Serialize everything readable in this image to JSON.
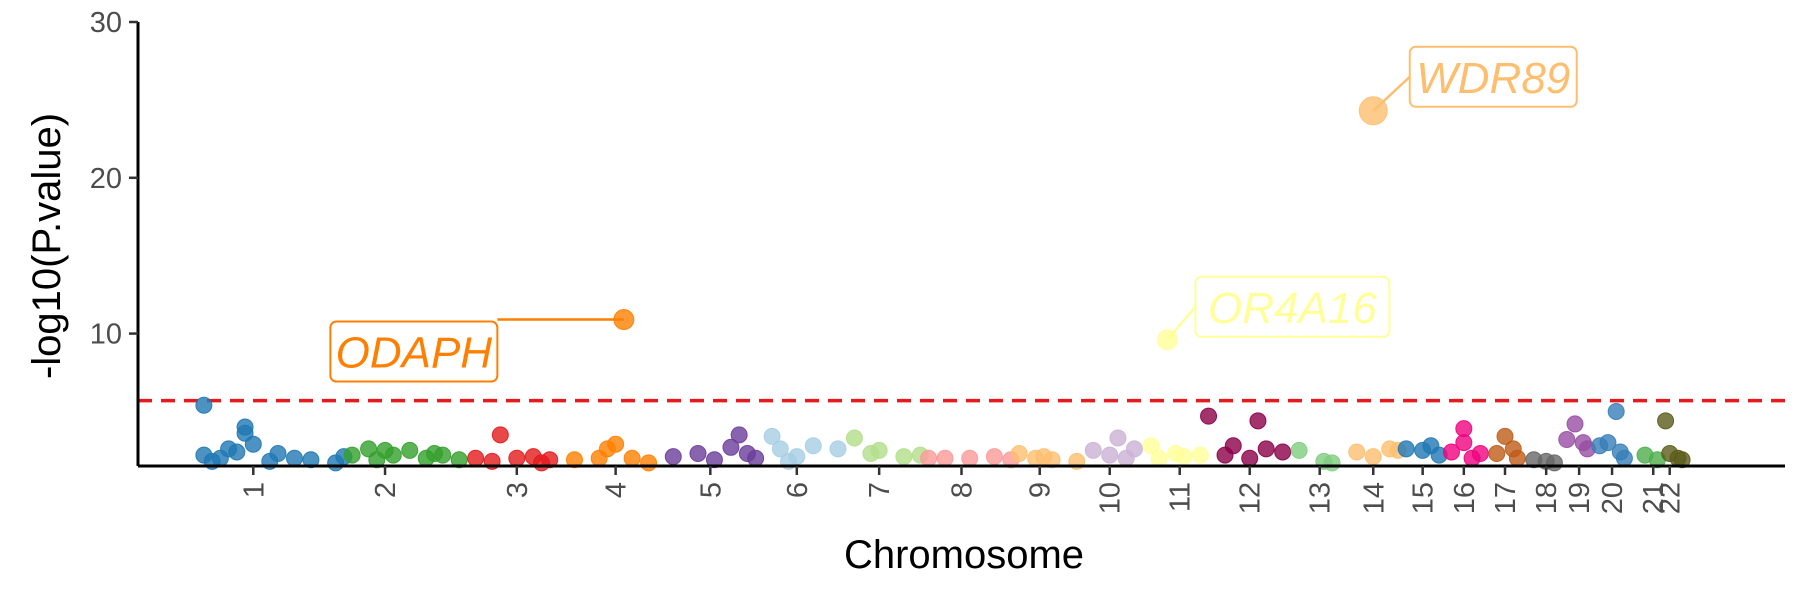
{
  "chart_data": {
    "type": "scatter",
    "subtype": "manhattan",
    "title": "",
    "xlabel": "Chromosome",
    "ylabel": "-log10(P.value)",
    "ylim": [
      1.5,
      30
    ],
    "yticks": [
      10,
      20,
      30
    ],
    "threshold": {
      "value": 5.7,
      "color": "#e41a1c",
      "style": "dashed"
    },
    "grid": false,
    "legend": "none",
    "chromosomes": [
      {
        "name": "1",
        "color": "#1f78b4",
        "pos": 1.4,
        "points": [
          [
            0.8,
            5.4
          ],
          [
            0.8,
            2.2
          ],
          [
            1.0,
            2.0
          ],
          [
            1.3,
            4.0
          ],
          [
            1.3,
            3.6
          ],
          [
            1.4,
            2.9
          ],
          [
            1.6,
            1.8
          ],
          [
            1.9,
            2.0
          ],
          [
            2.1,
            1.9
          ],
          [
            2.4,
            1.7
          ],
          [
            1.1,
            2.6
          ],
          [
            1.7,
            2.3
          ],
          [
            2.5,
            2.1
          ],
          [
            0.9,
            1.8
          ],
          [
            1.2,
            2.4
          ]
        ]
      },
      {
        "name": "2",
        "color": "#33a02c",
        "pos": 3.0,
        "points": [
          [
            2.6,
            2.2
          ],
          [
            2.8,
            2.6
          ],
          [
            3.0,
            2.5
          ],
          [
            3.1,
            2.2
          ],
          [
            3.3,
            2.5
          ],
          [
            3.6,
            2.3
          ],
          [
            3.9,
            1.9
          ],
          [
            2.9,
            1.9
          ],
          [
            3.5,
            2.0
          ],
          [
            3.7,
            2.2
          ]
        ]
      },
      {
        "name": "3",
        "color": "#e31a1c",
        "pos": 4.6,
        "points": [
          [
            4.1,
            2.0
          ],
          [
            4.4,
            3.5
          ],
          [
            4.6,
            2.0
          ],
          [
            4.8,
            2.1
          ],
          [
            5.0,
            1.9
          ],
          [
            4.3,
            1.8
          ],
          [
            4.9,
            1.7
          ]
        ]
      },
      {
        "name": "4",
        "color": "#ff7f00",
        "pos": 5.8,
        "points": [
          [
            5.3,
            1.9
          ],
          [
            5.6,
            2.0
          ],
          [
            5.8,
            2.9
          ],
          [
            5.9,
            10.9
          ],
          [
            6.0,
            2.0
          ],
          [
            6.2,
            1.7
          ],
          [
            5.7,
            2.6
          ]
        ]
      },
      {
        "name": "5",
        "color": "#6a3d9a",
        "pos": 6.95,
        "points": [
          [
            6.5,
            2.1
          ],
          [
            6.8,
            2.3
          ],
          [
            7.0,
            1.9
          ],
          [
            7.3,
            3.5
          ],
          [
            7.4,
            2.3
          ],
          [
            7.5,
            2.0
          ],
          [
            7.2,
            2.7
          ]
        ]
      },
      {
        "name": "6",
        "color": "#a6cee3",
        "pos": 8.0,
        "points": [
          [
            7.7,
            3.4
          ],
          [
            7.8,
            2.6
          ],
          [
            8.2,
            2.8
          ],
          [
            8.5,
            2.6
          ],
          [
            8.0,
            2.1
          ],
          [
            7.9,
            1.8
          ]
        ]
      },
      {
        "name": "7",
        "color": "#b2df8a",
        "pos": 9.0,
        "points": [
          [
            8.7,
            3.3
          ],
          [
            9.0,
            2.5
          ],
          [
            9.3,
            2.1
          ],
          [
            8.9,
            2.3
          ],
          [
            9.5,
            2.2
          ]
        ]
      },
      {
        "name": "8",
        "color": "#fb9a99",
        "pos": 10.0,
        "points": [
          [
            9.6,
            2.0
          ],
          [
            9.8,
            2.0
          ],
          [
            10.1,
            2.0
          ],
          [
            10.4,
            2.1
          ],
          [
            10.6,
            1.9
          ]
        ]
      },
      {
        "name": "9",
        "color": "#fdbf6f",
        "pos": 10.95,
        "points": [
          [
            10.7,
            2.3
          ],
          [
            10.9,
            2.0
          ],
          [
            11.1,
            1.9
          ],
          [
            11.4,
            1.8
          ],
          [
            11.0,
            2.1
          ]
        ]
      },
      {
        "name": "10",
        "color": "#cab2d6",
        "pos": 11.8,
        "points": [
          [
            11.6,
            2.5
          ],
          [
            11.9,
            3.3
          ],
          [
            12.1,
            2.6
          ],
          [
            11.8,
            2.2
          ],
          [
            12.0,
            2.0
          ]
        ]
      },
      {
        "name": "11",
        "color": "#ffff99",
        "pos": 12.65,
        "points": [
          [
            12.3,
            2.8
          ],
          [
            12.5,
            9.6
          ],
          [
            12.6,
            2.3
          ],
          [
            12.9,
            2.2
          ],
          [
            12.7,
            2.1
          ],
          [
            12.4,
            2.0
          ]
        ]
      },
      {
        "name": "12",
        "color": "#8b0048",
        "pos": 13.5,
        "points": [
          [
            13.0,
            4.7
          ],
          [
            13.3,
            2.8
          ],
          [
            13.6,
            4.4
          ],
          [
            13.7,
            2.6
          ],
          [
            13.9,
            2.4
          ],
          [
            13.2,
            2.2
          ],
          [
            13.5,
            2.0
          ]
        ]
      },
      {
        "name": "13",
        "color": "#7fcd7f",
        "pos": 14.35,
        "points": [
          [
            14.1,
            2.5
          ],
          [
            14.4,
            1.8
          ],
          [
            14.5,
            1.7
          ]
        ]
      },
      {
        "name": "14",
        "color": "#fdbf6f",
        "pos": 15.0,
        "points": [
          [
            14.8,
            2.4
          ],
          [
            15.0,
            24.3
          ],
          [
            15.2,
            2.6
          ],
          [
            15.0,
            2.1
          ],
          [
            15.3,
            2.5
          ]
        ]
      },
      {
        "name": "15",
        "color": "#1f78b4",
        "pos": 15.6,
        "points": [
          [
            15.4,
            2.6
          ],
          [
            15.6,
            2.5
          ],
          [
            15.7,
            2.8
          ],
          [
            15.8,
            2.2
          ]
        ]
      },
      {
        "name": "16",
        "color": "#f0027f",
        "pos": 16.1,
        "points": [
          [
            15.95,
            2.4
          ],
          [
            16.1,
            3.9
          ],
          [
            16.1,
            3.0
          ],
          [
            16.2,
            2.0
          ],
          [
            16.3,
            2.3
          ]
        ]
      },
      {
        "name": "17",
        "color": "#bf5b17",
        "pos": 16.6,
        "points": [
          [
            16.5,
            2.3
          ],
          [
            16.6,
            3.4
          ],
          [
            16.7,
            2.6
          ],
          [
            16.75,
            2.0
          ]
        ]
      },
      {
        "name": "18",
        "color": "#666666",
        "pos": 17.1,
        "points": [
          [
            16.95,
            1.9
          ],
          [
            17.1,
            1.8
          ],
          [
            17.2,
            1.7
          ]
        ]
      },
      {
        "name": "19",
        "color": "#984ea3",
        "pos": 17.5,
        "points": [
          [
            17.35,
            3.2
          ],
          [
            17.45,
            4.2
          ],
          [
            17.55,
            3.0
          ],
          [
            17.6,
            2.6
          ]
        ]
      },
      {
        "name": "20",
        "color": "#377eb8",
        "pos": 17.9,
        "points": [
          [
            17.75,
            2.8
          ],
          [
            17.85,
            3.0
          ],
          [
            17.95,
            5.0
          ],
          [
            18.0,
            2.4
          ],
          [
            18.05,
            2.0
          ]
        ]
      },
      {
        "name": "21",
        "color": "#4daf4a",
        "pos": 18.4,
        "points": [
          [
            18.3,
            2.2
          ],
          [
            18.45,
            1.9
          ]
        ]
      },
      {
        "name": "22",
        "color": "#5b5b1a",
        "pos": 18.6,
        "points": [
          [
            18.55,
            4.4
          ],
          [
            18.6,
            2.3
          ],
          [
            18.7,
            2.0
          ],
          [
            18.75,
            1.9
          ]
        ]
      }
    ],
    "annotations": [
      {
        "label": "ODAPH",
        "chrom": "4",
        "x": 5.9,
        "y": 10.9,
        "color": "#ff7f00"
      },
      {
        "label": "OR4A16",
        "chrom": "11",
        "x": 12.5,
        "y": 9.6,
        "color": "#ffff99"
      },
      {
        "label": "WDR89",
        "chrom": "14",
        "x": 15.0,
        "y": 24.3,
        "color": "#fdbf6f"
      }
    ]
  }
}
